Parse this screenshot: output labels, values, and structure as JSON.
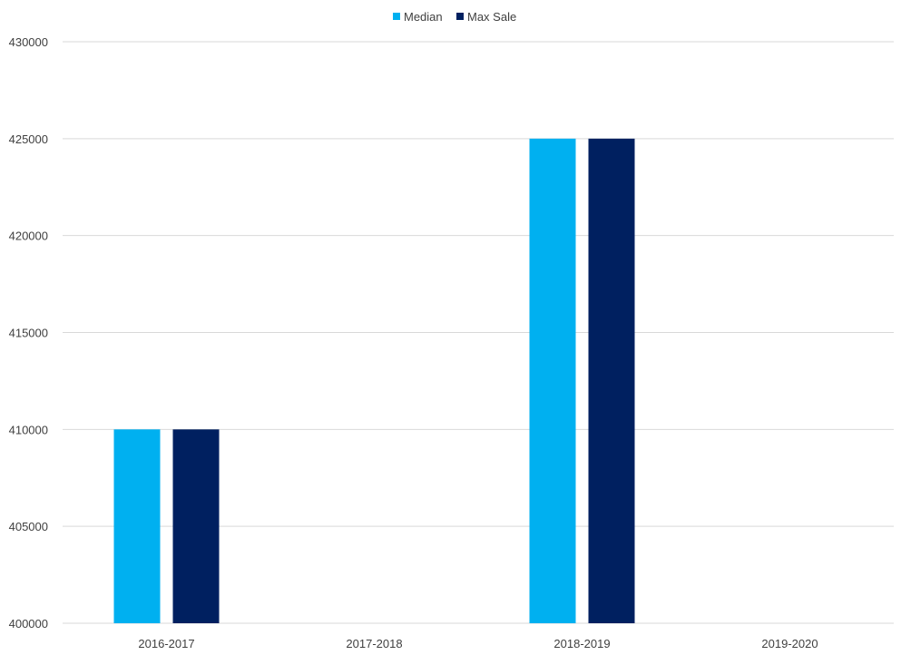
{
  "chart_data": {
    "type": "bar",
    "title": "",
    "xlabel": "",
    "ylabel": "",
    "categories": [
      "2016-2017",
      "2017-2018",
      "2018-2019",
      "2019-2020"
    ],
    "series": [
      {
        "name": "Median",
        "color": "#00b0f0",
        "values": [
          410000,
          null,
          425000,
          null
        ]
      },
      {
        "name": "Max Sale",
        "color": "#002060",
        "values": [
          410000,
          null,
          425000,
          null
        ]
      }
    ],
    "ylim": [
      400000,
      430000
    ],
    "yticks": [
      "400000",
      "405000",
      "410000",
      "415000",
      "420000",
      "425000",
      "430000"
    ],
    "grid": true,
    "legend_position": "top-center"
  }
}
